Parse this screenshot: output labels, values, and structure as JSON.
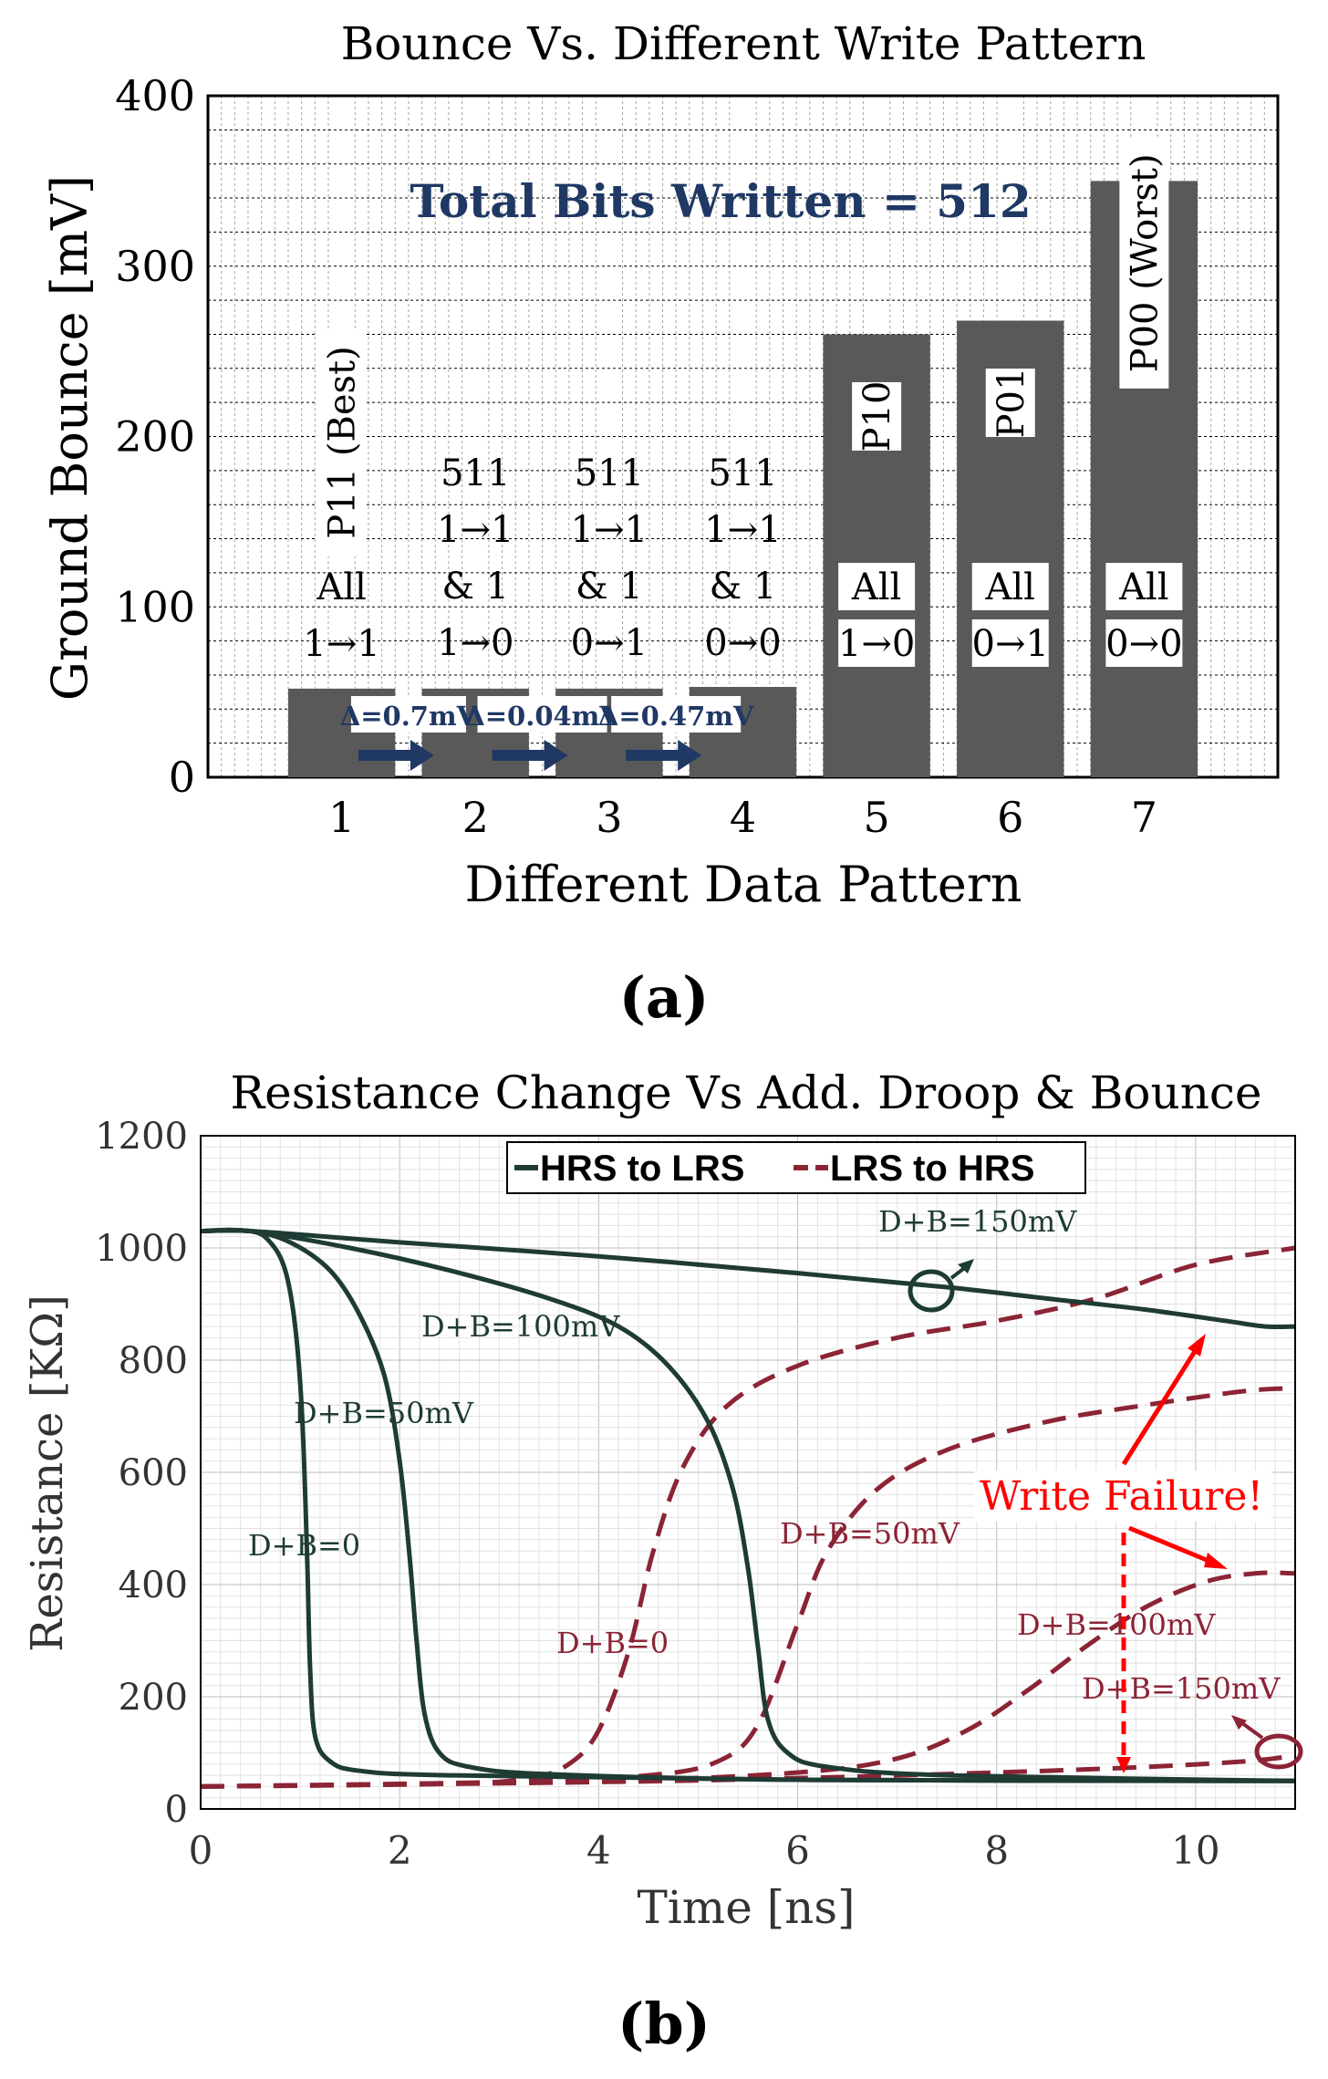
{
  "panel_a_label": "(a)",
  "panel_b_label": "(b)",
  "chart_data": [
    {
      "type": "bar",
      "title": "Bounce Vs. Different Write Pattern",
      "xlabel": "Different Data Pattern",
      "ylabel": "Ground Bounce [mV]",
      "ylim": [
        0,
        400
      ],
      "xlim": [
        0,
        8
      ],
      "yticks": [
        "0",
        "100",
        "200",
        "300",
        "400"
      ],
      "categories": [
        "1",
        "2",
        "3",
        "4",
        "5",
        "6",
        "7"
      ],
      "values": [
        52,
        52,
        52,
        53,
        260,
        268,
        350
      ],
      "bar_color": "#595959",
      "annotation": "Total Bits Written = 512",
      "annotation_color": "#1f3864",
      "bar_labels": [
        {
          "name": "P11 (Best)",
          "lines": [
            "All",
            "1→1"
          ]
        },
        {
          "name": "",
          "lines": [
            "511",
            "1→1",
            "& 1",
            "1→0"
          ]
        },
        {
          "name": "",
          "lines": [
            "511",
            "1→1",
            "& 1",
            "0→1"
          ]
        },
        {
          "name": "",
          "lines": [
            "511",
            "1→1",
            "& 1",
            "0→0"
          ]
        },
        {
          "name": "P10",
          "lines": [
            "All",
            "1→0"
          ]
        },
        {
          "name": "P01",
          "lines": [
            "All",
            "0→1"
          ]
        },
        {
          "name": "P00 (Worst)",
          "lines": [
            "All",
            "0→0"
          ]
        }
      ],
      "deltas": [
        "Δ=0.7mV",
        "Δ=0.04mV",
        "Δ=0.47mV"
      ]
    },
    {
      "type": "line",
      "title": "Resistance Change Vs Add. Droop & Bounce",
      "xlabel": "Time [ns]",
      "ylabel": "Resistance [KΩ]",
      "xlim": [
        0,
        11
      ],
      "ylim": [
        0,
        1200
      ],
      "xticks": [
        "0",
        "2",
        "4",
        "6",
        "8",
        "10"
      ],
      "yticks": [
        "0",
        "200",
        "400",
        "600",
        "800",
        "1000",
        "1200"
      ],
      "legend": [
        "HRS to LRS",
        "LRS to HRS"
      ],
      "legend_position": "top-center",
      "colors": {
        "hrs_to_lrs": "#1e3b34",
        "lrs_to_hrs": "#8b2435",
        "failure": "#ff0000"
      },
      "series": [
        {
          "name": "HRS to LRS",
          "label": "D+B=0",
          "style": "solid",
          "points": [
            [
              0,
              1030
            ],
            [
              0.5,
              1030
            ],
            [
              0.7,
              1010
            ],
            [
              0.85,
              960
            ],
            [
              0.95,
              860
            ],
            [
              1.02,
              700
            ],
            [
              1.07,
              450
            ],
            [
              1.1,
              250
            ],
            [
              1.15,
              130
            ],
            [
              1.3,
              85
            ],
            [
              1.6,
              68
            ],
            [
              2.5,
              60
            ],
            [
              6,
              52
            ],
            [
              11,
              50
            ]
          ]
        },
        {
          "name": "HRS to LRS",
          "label": "D+B=50mV",
          "style": "solid",
          "points": [
            [
              0,
              1030
            ],
            [
              0.5,
              1030
            ],
            [
              0.9,
              1010
            ],
            [
              1.3,
              960
            ],
            [
              1.6,
              880
            ],
            [
              1.85,
              770
            ],
            [
              2.0,
              620
            ],
            [
              2.1,
              450
            ],
            [
              2.17,
              300
            ],
            [
              2.25,
              170
            ],
            [
              2.4,
              100
            ],
            [
              2.7,
              75
            ],
            [
              3.5,
              62
            ],
            [
              6,
              52
            ],
            [
              11,
              50
            ]
          ]
        },
        {
          "name": "HRS to LRS",
          "label": "D+B=100mV",
          "style": "solid",
          "points": [
            [
              0,
              1030
            ],
            [
              0.5,
              1030
            ],
            [
              1.5,
              1000
            ],
            [
              2.5,
              960
            ],
            [
              3.5,
              910
            ],
            [
              4.2,
              860
            ],
            [
              4.7,
              790
            ],
            [
              5.1,
              690
            ],
            [
              5.35,
              570
            ],
            [
              5.5,
              430
            ],
            [
              5.6,
              290
            ],
            [
              5.7,
              160
            ],
            [
              5.9,
              100
            ],
            [
              6.3,
              75
            ],
            [
              7.5,
              60
            ],
            [
              11,
              50
            ]
          ]
        },
        {
          "name": "HRS to LRS",
          "label": "D+B=150mV",
          "style": "solid",
          "points": [
            [
              0,
              1030
            ],
            [
              0.5,
              1030
            ],
            [
              2,
              1010
            ],
            [
              4,
              985
            ],
            [
              6,
              955
            ],
            [
              7.5,
              930
            ],
            [
              8.5,
              910
            ],
            [
              9.5,
              890
            ],
            [
              10.3,
              870
            ],
            [
              10.7,
              860
            ],
            [
              11,
              860
            ]
          ]
        },
        {
          "name": "LRS to HRS",
          "label": "D+B=0",
          "style": "dashed",
          "points": [
            [
              0,
              40
            ],
            [
              2.5,
              45
            ],
            [
              3.3,
              55
            ],
            [
              3.7,
              80
            ],
            [
              4.0,
              140
            ],
            [
              4.3,
              280
            ],
            [
              4.55,
              460
            ],
            [
              4.85,
              610
            ],
            [
              5.3,
              720
            ],
            [
              6,
              790
            ],
            [
              7,
              840
            ],
            [
              8,
              870
            ],
            [
              9,
              910
            ],
            [
              10,
              970
            ],
            [
              11,
              1000
            ]
          ]
        },
        {
          "name": "LRS to HRS",
          "label": "D+B=50mV",
          "style": "dashed",
          "points": [
            [
              0,
              40
            ],
            [
              3,
              48
            ],
            [
              4.5,
              60
            ],
            [
              5.2,
              85
            ],
            [
              5.6,
              150
            ],
            [
              6.0,
              330
            ],
            [
              6.3,
              460
            ],
            [
              6.8,
              570
            ],
            [
              7.5,
              640
            ],
            [
              8.5,
              690
            ],
            [
              9.5,
              720
            ],
            [
              10.5,
              745
            ],
            [
              11,
              750
            ]
          ]
        },
        {
          "name": "LRS to HRS",
          "label": "D+B=100mV",
          "style": "dashed",
          "points": [
            [
              0,
              40
            ],
            [
              4,
              50
            ],
            [
              6,
              65
            ],
            [
              7,
              90
            ],
            [
              7.7,
              140
            ],
            [
              8.3,
              210
            ],
            [
              8.9,
              290
            ],
            [
              9.5,
              360
            ],
            [
              10.1,
              405
            ],
            [
              10.6,
              420
            ],
            [
              11,
              420
            ]
          ]
        },
        {
          "name": "LRS to HRS",
          "label": "D+B=150mV",
          "style": "dashed",
          "points": [
            [
              0,
              40
            ],
            [
              4,
              48
            ],
            [
              6,
              55
            ],
            [
              8,
              65
            ],
            [
              9.5,
              75
            ],
            [
              10.5,
              85
            ],
            [
              11,
              95
            ]
          ]
        }
      ],
      "annotation": "Write Failure!",
      "labels": {
        "h_db0": "D+B=0",
        "h_db50": "D+B=50mV",
        "h_db100": "D+B=100mV",
        "h_db150": "D+B=150mV",
        "l_db0": "D+B=0",
        "l_db50": "D+B=50mV",
        "l_db100": "D+B=100mV",
        "l_db150": "D+B=150mV"
      }
    }
  ]
}
